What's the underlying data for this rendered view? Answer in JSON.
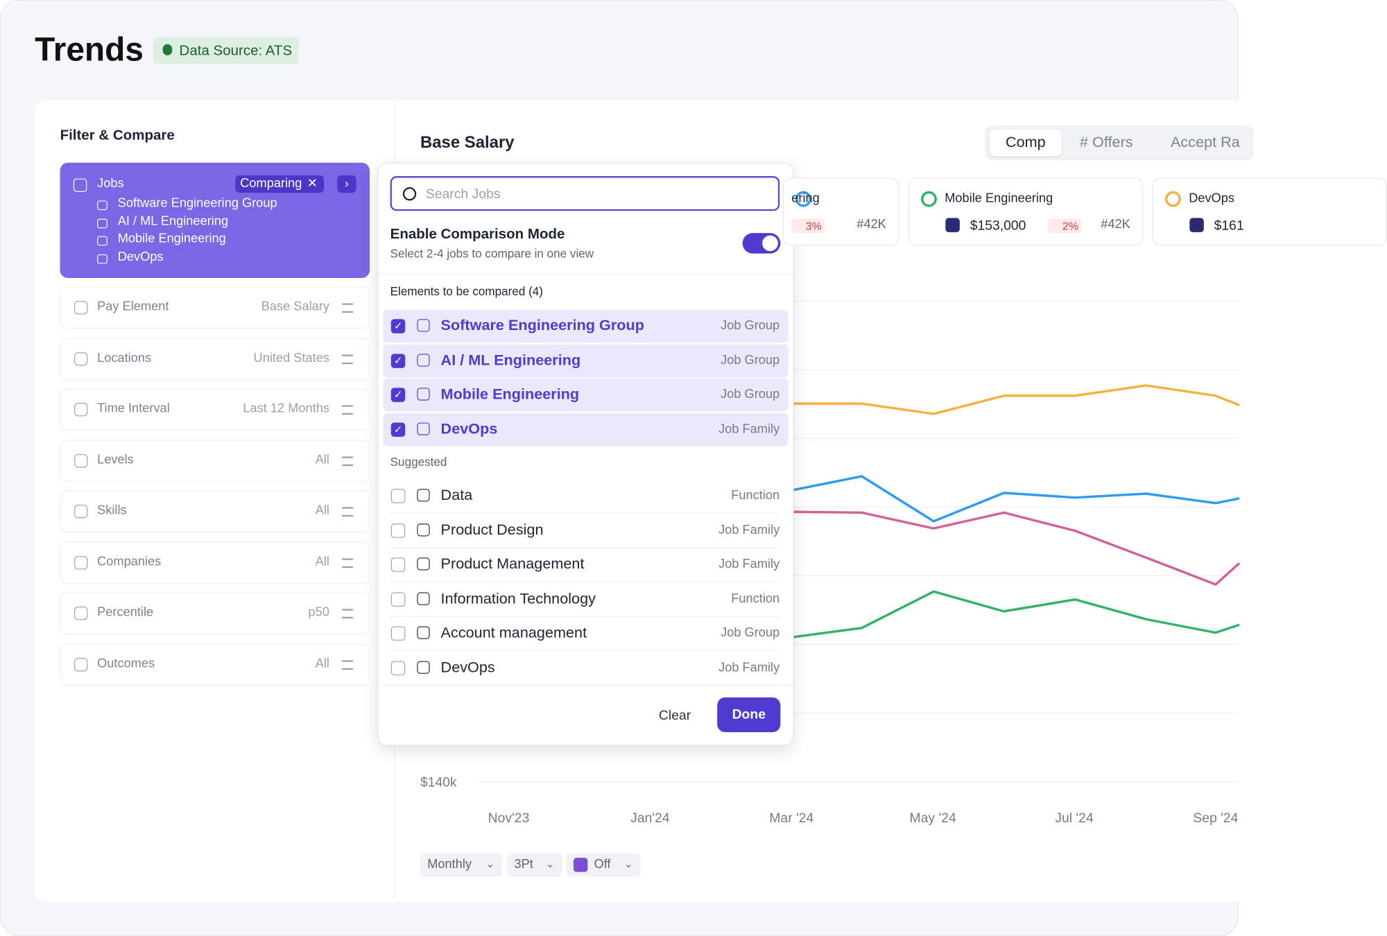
{
  "header": {
    "title": "Trends",
    "badge": "Data Source: ATS"
  },
  "filters": {
    "title": "Filter & Compare",
    "jobs": {
      "label": "Jobs",
      "status": "Comparing",
      "items": [
        "Software Engineering Group",
        "AI / ML Engineering",
        "Mobile Engineering",
        "DevOps"
      ]
    },
    "rows": [
      {
        "label": "Pay Element",
        "value": "Base Salary"
      },
      {
        "label": "Locations",
        "value": "United States"
      },
      {
        "label": "Time Interval",
        "value": "Last 12 Months"
      },
      {
        "label": "Levels",
        "value": "All"
      },
      {
        "label": "Skills",
        "value": "All"
      },
      {
        "label": "Companies",
        "value": "All"
      },
      {
        "label": "Percentile",
        "value": "p50"
      },
      {
        "label": "Outcomes",
        "value": "All"
      }
    ]
  },
  "chart": {
    "title": "Base Salary",
    "tabs": [
      "Comp",
      "# Offers",
      "Accept Ra"
    ],
    "cards": [
      {
        "name": "ering",
        "value": "",
        "change": "3%",
        "count": "#42K"
      },
      {
        "name": "Mobile Engineering",
        "value": "$153,000",
        "change": "2%",
        "count": "#42K"
      },
      {
        "name": "DevOps",
        "value": "$161",
        "change": "",
        "count": ""
      }
    ],
    "y_label": "$140k",
    "x_labels": [
      "Nov'23",
      "Jan'24",
      "Mar '24",
      "May '24",
      "Jul '24",
      "Sep '24"
    ],
    "controls": [
      "Monthly",
      "3Pt",
      "Off"
    ]
  },
  "dropdown": {
    "search_placeholder": "Search Jobs",
    "mode_title": "Enable Comparison Mode",
    "mode_subtitle": "Select 2-4 jobs to compare in one view",
    "selected_title": "Elements to be compared (4)",
    "selected": [
      {
        "name": "Software Engineering Group",
        "type": "Job Group"
      },
      {
        "name": "AI / ML Engineering",
        "type": "Job Group"
      },
      {
        "name": "Mobile Engineering",
        "type": "Job Group"
      },
      {
        "name": "DevOps",
        "type": "Job Family"
      }
    ],
    "suggested_title": "Suggested",
    "suggested": [
      {
        "name": "Data",
        "type": "Function"
      },
      {
        "name": "Product Design",
        "type": "Job Family"
      },
      {
        "name": "Product Management",
        "type": "Job Family"
      },
      {
        "name": "Information Technology",
        "type": "Function"
      },
      {
        "name": "Account management",
        "type": "Job Group"
      },
      {
        "name": "DevOps",
        "type": "Job Family"
      }
    ],
    "clear": "Clear",
    "done": "Done"
  }
}
